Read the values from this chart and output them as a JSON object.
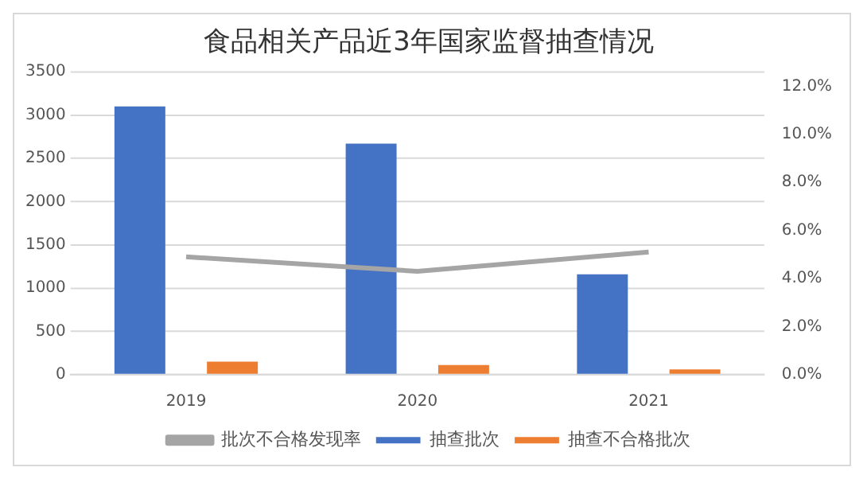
{
  "chart_data": {
    "type": "bar",
    "title": "食品相关产品近3年国家监督抽查情况",
    "categories": [
      "2019",
      "2020",
      "2021"
    ],
    "series": [
      {
        "name": "抽查批次",
        "color": "#4472c4",
        "values": [
          3100,
          2670,
          1160
        ]
      },
      {
        "name": "抽查不合格批次",
        "color": "#ed7d31",
        "values": [
          150,
          110,
          60
        ]
      },
      {
        "name": "批次不合格发现率",
        "type": "line",
        "axis": "y2",
        "color": "#a5a5a5",
        "values": [
          4.9,
          4.3,
          5.1
        ]
      }
    ],
    "ylim": [
      0,
      3500
    ],
    "yticks": [
      0,
      500,
      1000,
      1500,
      2000,
      2500,
      3000,
      3500
    ],
    "y2lim": [
      0,
      12.6
    ],
    "y2ticks": [
      {
        "value": 0,
        "label": "0.0%"
      },
      {
        "value": 2,
        "label": "2.0%"
      },
      {
        "value": 4,
        "label": "4.0%"
      },
      {
        "value": 6,
        "label": "6.0%"
      },
      {
        "value": 8,
        "label": "8.0%"
      },
      {
        "value": 10,
        "label": "10.0%"
      },
      {
        "value": 12,
        "label": "12.0%"
      }
    ],
    "grid": "y",
    "legend": "bottom",
    "marker": "none"
  }
}
